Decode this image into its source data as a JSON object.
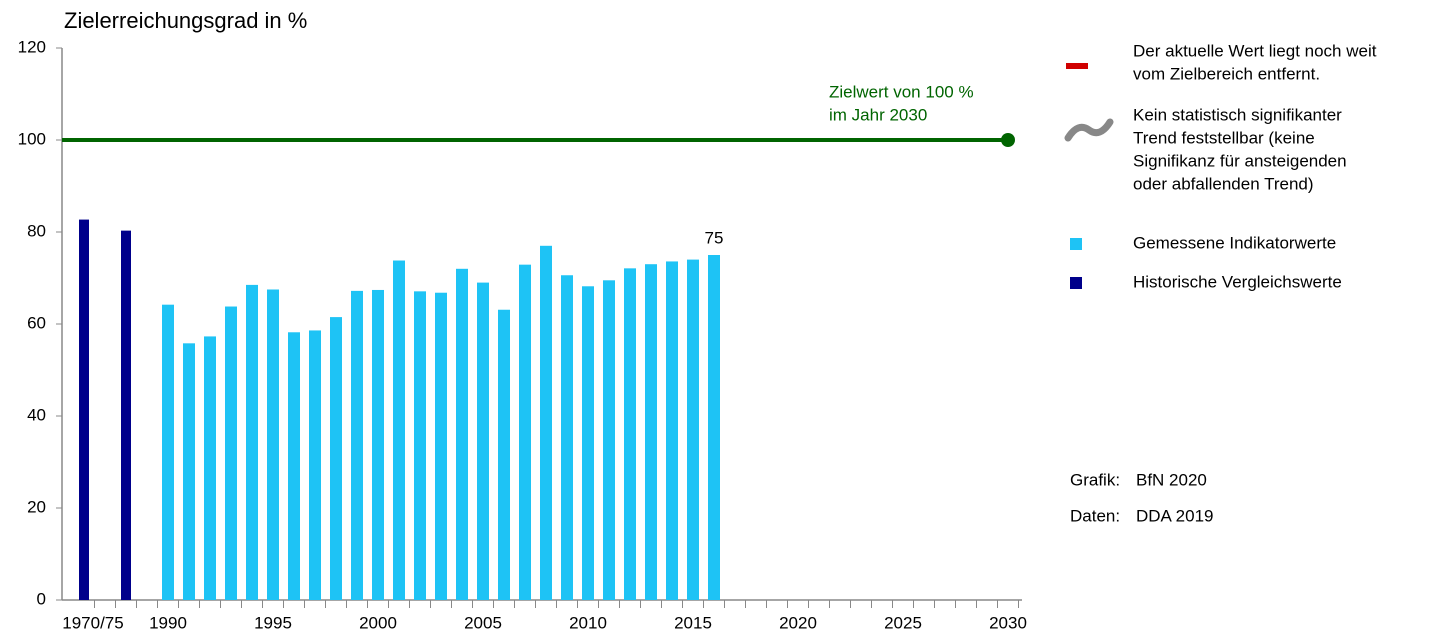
{
  "chart_data": {
    "type": "bar",
    "y_label": "Zielerreichungsgrad in %",
    "categories": [
      "1970/75",
      null,
      null,
      null,
      "1990",
      null,
      null,
      null,
      null,
      "1995",
      null,
      null,
      null,
      null,
      "2000",
      null,
      null,
      null,
      null,
      "2005",
      null,
      null,
      null,
      null,
      "2010",
      null,
      null,
      null,
      null,
      "2015",
      null,
      null,
      null,
      null,
      "2020",
      null,
      null,
      null,
      null,
      "2025",
      null,
      null,
      null,
      null,
      "2030"
    ],
    "series": [
      {
        "name": "Gemessene Indikatorwerte",
        "color": "#1ec3f5",
        "values": [
          null,
          null,
          null,
          null,
          64.2,
          55.8,
          57.3,
          63.8,
          68.5,
          67.5,
          58.2,
          58.6,
          61.5,
          67.2,
          67.4,
          73.8,
          67.1,
          66.8,
          72.0,
          69.0,
          63.1,
          72.9,
          77.0,
          70.6,
          68.2,
          69.5,
          72.1,
          73.0,
          73.6,
          74.0,
          75.0,
          null,
          null,
          null,
          null,
          null,
          null,
          null,
          null,
          null,
          null,
          null,
          null,
          null,
          null
        ],
        "value_labels": [
          null,
          null,
          null,
          null,
          null,
          null,
          null,
          null,
          null,
          null,
          null,
          null,
          null,
          null,
          null,
          null,
          null,
          null,
          null,
          null,
          null,
          null,
          null,
          null,
          null,
          null,
          null,
          null,
          null,
          null,
          "75",
          null,
          null,
          null,
          null,
          null,
          null,
          null,
          null,
          null,
          null,
          null,
          null,
          null,
          null
        ]
      },
      {
        "name": "Historische Vergleichswerte",
        "color": "#00008b",
        "values": [
          82.7,
          null,
          80.3,
          null,
          null,
          null,
          null,
          null,
          null,
          null,
          null,
          null,
          null,
          null,
          null,
          null,
          null,
          null,
          null,
          null,
          null,
          null,
          null,
          null,
          null,
          null,
          null,
          null,
          null,
          null,
          null,
          null,
          null,
          null,
          null,
          null,
          null,
          null,
          null,
          null,
          null,
          null,
          null,
          null,
          null
        ]
      }
    ],
    "ylim": [
      0,
      120
    ],
    "yticks": [
      0,
      20,
      40,
      60,
      80,
      100,
      120
    ],
    "target": {
      "value": 100,
      "color": "#006400",
      "label": [
        "Zielwert von 100 %",
        "im Jahr 2030"
      ]
    },
    "status": {
      "color": "#d00000",
      "text": [
        "Der aktuelle Wert liegt noch weit",
        "vom Zielbereich entfernt."
      ]
    },
    "trend": {
      "color": "#888888",
      "text": [
        "Kein statistisch signifikanter",
        "Trend feststellbar (keine",
        "Signifikanz für ansteigenden",
        "oder abfallenden Trend)"
      ]
    },
    "credits": [
      [
        "Grafik:",
        "BfN 2020"
      ],
      [
        "Daten:",
        "DDA 2019"
      ]
    ]
  }
}
